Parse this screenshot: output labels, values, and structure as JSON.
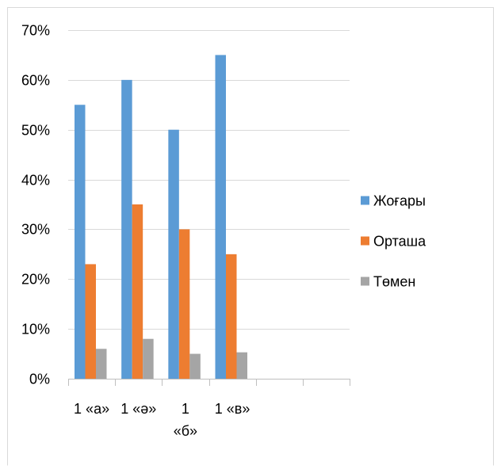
{
  "chart_data": {
    "type": "bar",
    "categories": [
      "1 «а»",
      "1 «ә»",
      "1 «б»",
      "1 «в»",
      "",
      ""
    ],
    "category_tick_lines": [
      [
        "1 «а»"
      ],
      [
        "1 «ә»"
      ],
      [
        "1",
        "«б»"
      ],
      [
        "1 «в»"
      ],
      [
        ""
      ],
      [
        ""
      ]
    ],
    "series": [
      {
        "name": "Жоғары",
        "color": "#5b9bd5",
        "values": [
          0.55,
          0.6,
          0.5,
          0.65,
          null,
          null
        ]
      },
      {
        "name": "Орташа",
        "color": "#ed7d31",
        "values": [
          0.23,
          0.35,
          0.3,
          0.25,
          null,
          null
        ]
      },
      {
        "name": "Төмен",
        "color": "#a5a5a5",
        "values": [
          0.06,
          0.08,
          0.05,
          0.053,
          null,
          null
        ]
      }
    ],
    "y_ticks": [
      "0%",
      "10%",
      "20%",
      "30%",
      "40%",
      "50%",
      "60%",
      "70%"
    ],
    "ylim": [
      0,
      0.7
    ],
    "y_step": 0.1,
    "grid": true,
    "legend_position": "right",
    "title": "",
    "xlabel": "",
    "ylabel": ""
  }
}
